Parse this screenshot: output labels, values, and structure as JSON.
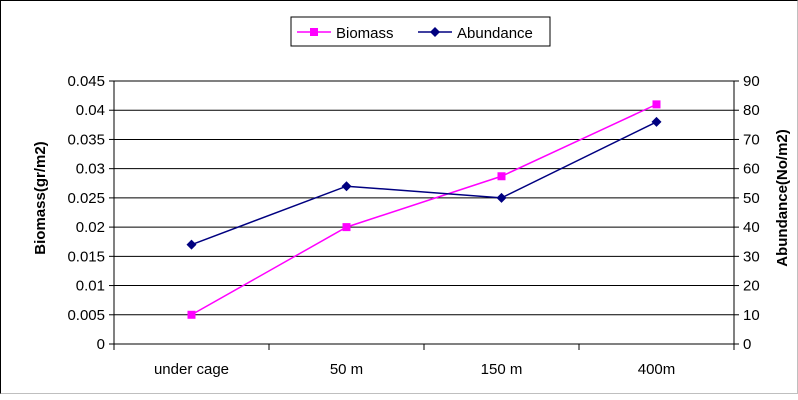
{
  "chart_data": {
    "type": "line",
    "categories": [
      "under cage",
      "50 m",
      "150 m",
      "400m"
    ],
    "series": [
      {
        "name": "Biomass",
        "axis": "left",
        "color": "#ff00ff",
        "marker": "square",
        "values": [
          0.005,
          0.02,
          0.0287,
          0.041
        ]
      },
      {
        "name": "Abundance",
        "axis": "right",
        "color": "#000080",
        "marker": "diamond",
        "values": [
          34,
          54,
          50,
          76
        ]
      }
    ],
    "ylabel_left": "Biomass(gr/m2)",
    "ylabel_right": "Abundance(No/m2)",
    "ylim_left": [
      0,
      0.045
    ],
    "ylim_right": [
      0,
      90
    ],
    "yticks_left": [
      "0",
      "0.005",
      "0.01",
      "0.015",
      "0.02",
      "0.025",
      "0.03",
      "0.035",
      "0.04",
      "0.045"
    ],
    "yticks_right": [
      "0",
      "10",
      "20",
      "30",
      "40",
      "50",
      "60",
      "70",
      "80",
      "90"
    ],
    "grid": true,
    "legend_position": "top-center"
  }
}
